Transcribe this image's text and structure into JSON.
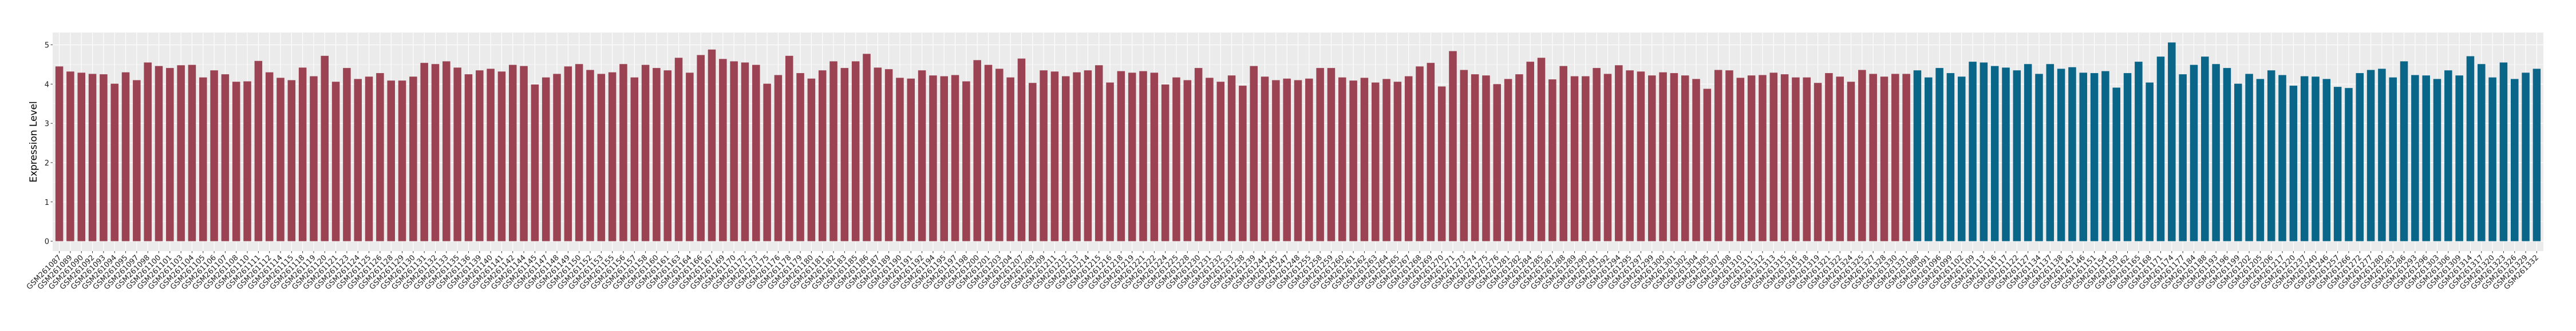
{
  "chart_data": {
    "type": "bar",
    "title": "",
    "xlabel": "",
    "ylabel": "Expression Level",
    "ylim": [
      -0.253,
      5.313
    ],
    "yticks": [
      0,
      1,
      2,
      3,
      4,
      5
    ],
    "grid": true,
    "legend": "none",
    "panel_background": "#EBEBEB",
    "series": [
      {
        "color": "#9B4352",
        "categories": [
          "GSM261087",
          "GSM261089",
          "GSM261090",
          "GSM261092",
          "GSM261093",
          "GSM261094",
          "GSM261095",
          "GSM261097",
          "GSM261098",
          "GSM261100",
          "GSM261101",
          "GSM261103",
          "GSM261104",
          "GSM261105",
          "GSM261106",
          "GSM261107",
          "GSM261108",
          "GSM261110",
          "GSM261111",
          "GSM261112",
          "GSM261114",
          "GSM261115",
          "GSM261118",
          "GSM261119",
          "GSM261120",
          "GSM261121",
          "GSM261123",
          "GSM261124",
          "GSM261125",
          "GSM261126",
          "GSM261128",
          "GSM261129",
          "GSM261130",
          "GSM261131",
          "GSM261132",
          "GSM261133",
          "GSM261135",
          "GSM261136",
          "GSM261139",
          "GSM261140",
          "GSM261141",
          "GSM261142",
          "GSM261144",
          "GSM261145",
          "GSM261147",
          "GSM261148",
          "GSM261149",
          "GSM261150",
          "GSM261152",
          "GSM261153",
          "GSM261155",
          "GSM261156",
          "GSM261157",
          "GSM261158",
          "GSM261160",
          "GSM261161",
          "GSM261163",
          "GSM261164",
          "GSM261166",
          "GSM261167",
          "GSM261169",
          "GSM261170",
          "GSM261172",
          "GSM261173",
          "GSM261175",
          "GSM261176",
          "GSM261178",
          "GSM261179",
          "GSM261180",
          "GSM261181",
          "GSM261182",
          "GSM261183",
          "GSM261185",
          "GSM261186",
          "GSM261187",
          "GSM261189",
          "GSM261190",
          "GSM261191",
          "GSM261192",
          "GSM261194",
          "GSM261195",
          "GSM261197",
          "GSM261198",
          "GSM261200",
          "GSM261201",
          "GSM261203",
          "GSM261204",
          "GSM261207",
          "GSM261208",
          "GSM261209",
          "GSM261211",
          "GSM261212",
          "GSM261213",
          "GSM261214",
          "GSM261215",
          "GSM261216",
          "GSM261218",
          "GSM261219",
          "GSM261221",
          "GSM261222",
          "GSM261224",
          "GSM261225",
          "GSM261228",
          "GSM261230",
          "GSM261231",
          "GSM261232",
          "GSM261233",
          "GSM261238",
          "GSM261239",
          "GSM261244",
          "GSM261245",
          "GSM261247",
          "GSM261248",
          "GSM261255",
          "GSM261258",
          "GSM261259",
          "GSM261260",
          "GSM261261",
          "GSM261262",
          "GSM261263",
          "GSM261264",
          "GSM261265",
          "GSM261267",
          "GSM261268",
          "GSM261269",
          "GSM261270",
          "GSM261271",
          "GSM261273",
          "GSM261274",
          "GSM261275",
          "GSM261276",
          "GSM261281",
          "GSM261282",
          "GSM261284",
          "GSM261285",
          "GSM261287",
          "GSM261288",
          "GSM261289",
          "GSM261290",
          "GSM261291",
          "GSM261292",
          "GSM261294",
          "GSM261295",
          "GSM261297",
          "GSM261299",
          "GSM261300",
          "GSM261301",
          "GSM261302",
          "GSM261304",
          "GSM261305",
          "GSM261307",
          "GSM261308",
          "GSM261310",
          "GSM261311",
          "GSM261312",
          "GSM261313",
          "GSM261315",
          "GSM261316",
          "GSM261318",
          "GSM261319",
          "GSM261321",
          "GSM261322",
          "GSM261324",
          "GSM261325",
          "GSM261327",
          "GSM261328",
          "GSM261330",
          "GSM261331"
        ],
        "values": [
          4.45,
          4.32,
          4.29,
          4.26,
          4.25,
          4.01,
          4.3,
          4.1,
          4.55,
          4.46,
          4.41,
          4.48,
          4.49,
          4.17,
          4.35,
          4.25,
          4.06,
          4.07,
          4.59,
          4.3,
          4.16,
          4.1,
          4.42,
          4.2,
          4.72,
          4.06,
          4.41,
          4.13,
          4.19,
          4.28,
          4.09,
          4.09,
          4.19,
          4.54,
          4.51,
          4.58,
          4.42,
          4.25,
          4.35,
          4.39,
          4.32,
          4.49,
          4.46,
          3.99,
          4.17,
          4.26,
          4.45,
          4.51,
          4.36,
          4.26,
          4.3,
          4.51,
          4.17,
          4.49,
          4.41,
          4.35,
          4.67,
          4.29,
          4.74,
          4.88,
          4.64,
          4.58,
          4.55,
          4.49,
          4.01,
          4.23,
          4.72,
          4.28,
          4.14,
          4.35,
          4.58,
          4.41,
          4.58,
          4.77,
          4.42,
          4.38,
          4.16,
          4.14,
          4.35,
          4.22,
          4.2,
          4.23,
          4.07,
          4.61,
          4.49,
          4.39,
          4.17,
          4.65,
          4.03,
          4.35,
          4.32,
          4.2,
          4.3,
          4.35,
          4.48,
          4.04,
          4.33,
          4.29,
          4.33,
          4.29,
          3.99,
          4.17,
          4.1,
          4.41,
          4.16,
          4.06,
          4.22,
          3.96,
          4.46,
          4.19,
          4.1,
          4.14,
          4.1,
          4.14,
          4.41,
          4.41,
          4.17,
          4.09,
          4.16,
          4.04,
          4.13,
          4.06,
          4.2,
          4.45,
          4.54,
          3.94,
          4.84,
          4.36,
          4.25,
          4.22,
          4.0,
          4.13,
          4.25,
          4.57,
          4.67,
          4.12,
          4.46,
          4.2,
          4.2,
          4.41,
          4.26,
          4.48,
          4.35,
          4.32,
          4.22,
          4.3,
          4.28,
          4.22,
          4.13,
          3.88,
          4.36,
          4.35,
          4.16,
          4.22,
          4.23,
          4.29,
          4.25,
          4.17,
          4.17,
          4.03,
          4.28,
          4.19,
          4.06,
          4.36,
          4.26,
          4.19,
          4.26,
          4.26
        ]
      },
      {
        "color": "#0A6688",
        "categories": [
          "GSM261088",
          "GSM261091",
          "GSM261096",
          "GSM261099",
          "GSM261102",
          "GSM261109",
          "GSM261113",
          "GSM261116",
          "GSM261117",
          "GSM261122",
          "GSM261127",
          "GSM261134",
          "GSM261137",
          "GSM261138",
          "GSM261143",
          "GSM261146",
          "GSM261151",
          "GSM261154",
          "GSM261159",
          "GSM261162",
          "GSM261165",
          "GSM261168",
          "GSM261171",
          "GSM261174",
          "GSM261177",
          "GSM261184",
          "GSM261188",
          "GSM261193",
          "GSM261196",
          "GSM261199",
          "GSM261202",
          "GSM261205",
          "GSM261206",
          "GSM261217",
          "GSM261220",
          "GSM261237",
          "GSM261240",
          "GSM261246",
          "GSM261257",
          "GSM261266",
          "GSM261272",
          "GSM261277",
          "GSM261280",
          "GSM261283",
          "GSM261286",
          "GSM261293",
          "GSM261296",
          "GSM261303",
          "GSM261306",
          "GSM261309",
          "GSM261314",
          "GSM261317",
          "GSM261320",
          "GSM261323",
          "GSM261326",
          "GSM261329",
          "GSM261332"
        ],
        "values": [
          4.35,
          4.17,
          4.41,
          4.28,
          4.19,
          4.57,
          4.55,
          4.46,
          4.42,
          4.35,
          4.51,
          4.26,
          4.51,
          4.39,
          4.43,
          4.29,
          4.28,
          4.33,
          3.91,
          4.28,
          4.57,
          4.04,
          4.7,
          5.06,
          4.25,
          4.49,
          4.7,
          4.51,
          4.41,
          4.01,
          4.26,
          4.13,
          4.35,
          4.23,
          3.96,
          4.2,
          4.19,
          4.13,
          3.93,
          3.9,
          4.28,
          4.36,
          4.39,
          4.17,
          4.58,
          4.23,
          4.22,
          4.13,
          4.35,
          4.22,
          4.71,
          4.51,
          4.17,
          4.55,
          4.13,
          4.29,
          4.39
        ]
      }
    ]
  }
}
